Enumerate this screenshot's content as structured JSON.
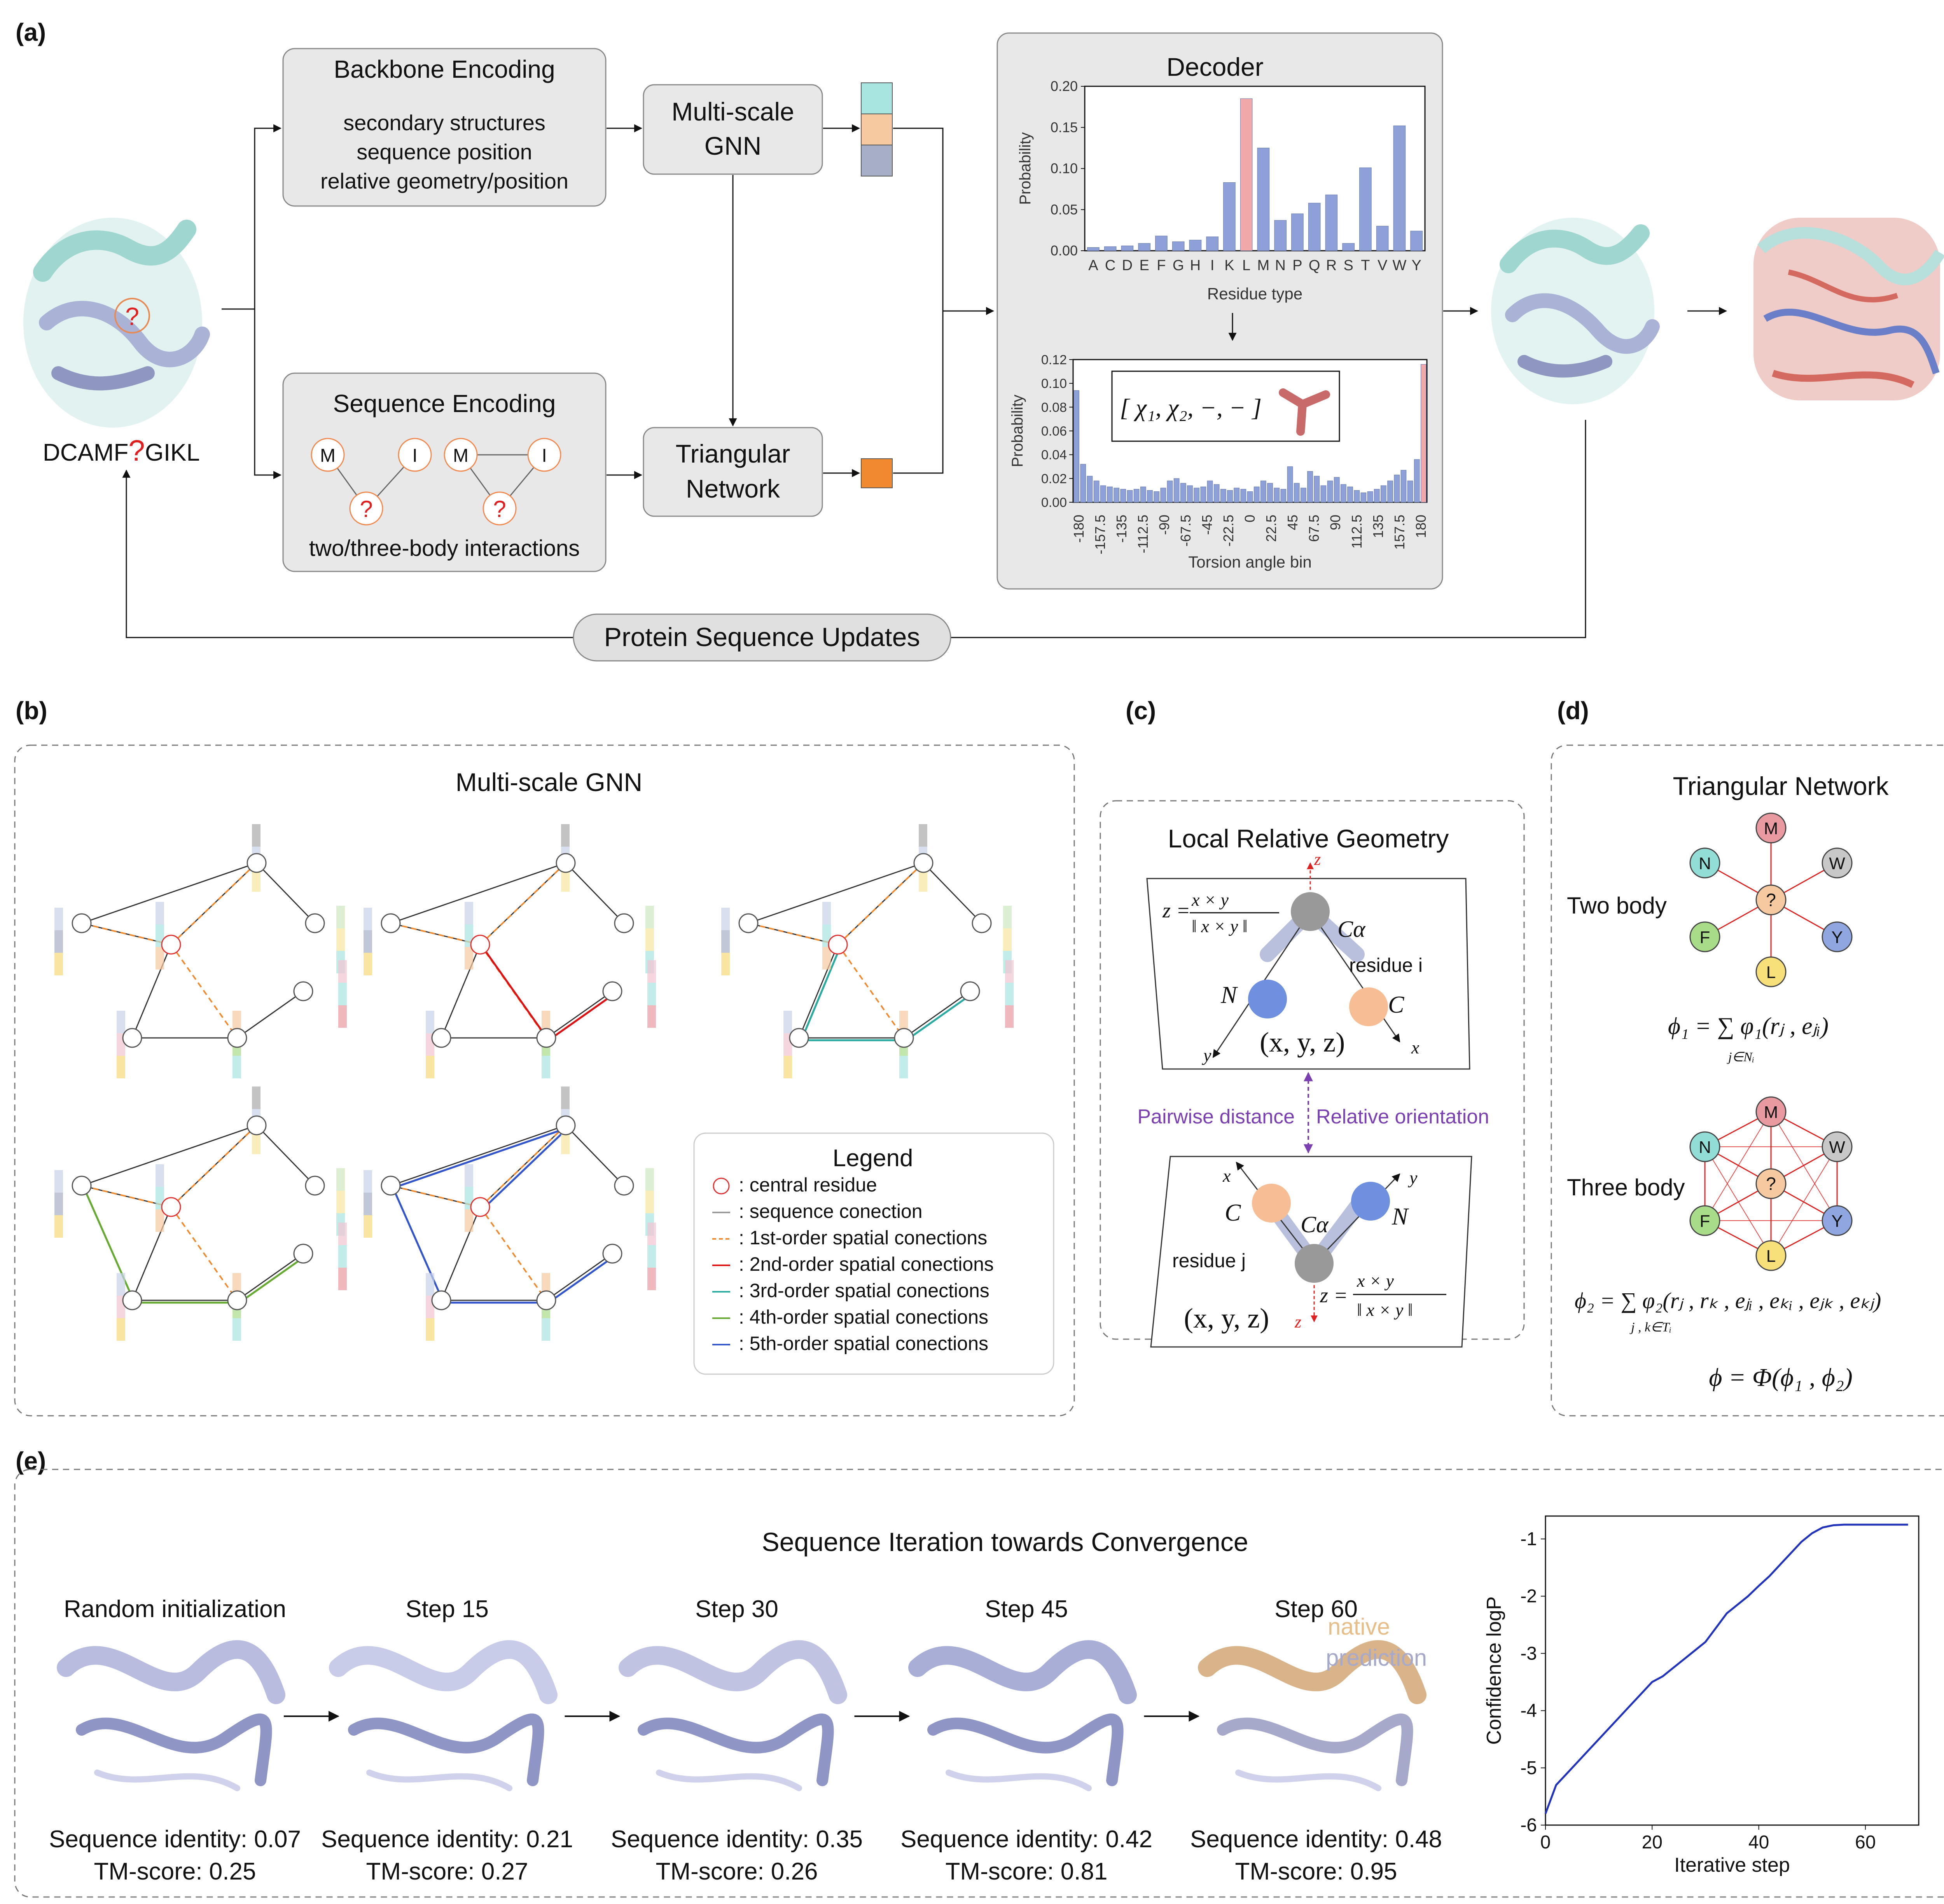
{
  "panels": {
    "a": "(a)",
    "b": "(b)",
    "c": "(c)",
    "d": "(d)",
    "e": "(e)"
  },
  "a": {
    "backbone_title": "Backbone Encoding",
    "backbone_lines": [
      "secondary structures",
      "sequence position",
      "relative geometry/position"
    ],
    "sequence_title": "Sequence Encoding",
    "sequence_caption": "two/three-body interactions",
    "node_m": "M",
    "node_i": "I",
    "node_q": "?",
    "gnn_line1": "Multi-scale",
    "gnn_line2": "GNN",
    "tri_line1": "Triangular",
    "tri_line2": "Network",
    "seq_prefix": "DCAMF",
    "seq_q": "?",
    "seq_suffix": "GIKL",
    "protein_q": "?",
    "update_label": "Protein Sequence Updates",
    "decoder_title": "Decoder",
    "chi_formula": "[ χ₁, χ₂, −, − ]"
  },
  "chart_data": [
    {
      "type": "bar",
      "ylabel": "Probability",
      "xlabel": "Residue type",
      "ylim": [
        0,
        0.2
      ],
      "yticks": [
        "0.00",
        "0.05",
        "0.10",
        "0.15",
        "0.20"
      ],
      "categories": [
        "A",
        "C",
        "D",
        "E",
        "F",
        "G",
        "H",
        "I",
        "K",
        "L",
        "M",
        "N",
        "P",
        "Q",
        "R",
        "S",
        "T",
        "V",
        "W",
        "Y"
      ],
      "values": [
        0.004,
        0.005,
        0.006,
        0.009,
        0.018,
        0.011,
        0.013,
        0.017,
        0.083,
        0.185,
        0.125,
        0.037,
        0.045,
        0.058,
        0.068,
        0.009,
        0.101,
        0.03,
        0.152,
        0.024
      ],
      "highlight_index": 9,
      "bar_color": "#8da0d8",
      "highlight_color": "#f0a8a8"
    },
    {
      "type": "bar",
      "ylabel": "Probability",
      "xlabel": "Torsion angle bin",
      "ylim": [
        0,
        0.12
      ],
      "yticks": [
        "0.00",
        "0.02",
        "0.04",
        "0.06",
        "0.08",
        "0.10",
        "0.12"
      ],
      "xticks": [
        "-180",
        "-157.5",
        "-135",
        "-112.5",
        "-90",
        "-67.5",
        "-45",
        "-22.5",
        "0",
        "22.5",
        "45",
        "67.5",
        "90",
        "112.5",
        "135",
        "157.5",
        "180"
      ],
      "values": [
        0.094,
        0.032,
        0.022,
        0.018,
        0.014,
        0.013,
        0.012,
        0.011,
        0.01,
        0.011,
        0.013,
        0.01,
        0.009,
        0.012,
        0.018,
        0.02,
        0.016,
        0.014,
        0.012,
        0.013,
        0.018,
        0.015,
        0.011,
        0.01,
        0.012,
        0.011,
        0.009,
        0.013,
        0.018,
        0.016,
        0.012,
        0.011,
        0.03,
        0.016,
        0.012,
        0.026,
        0.022,
        0.014,
        0.018,
        0.021,
        0.015,
        0.013,
        0.01,
        0.008,
        0.009,
        0.011,
        0.014,
        0.018,
        0.023,
        0.027,
        0.018,
        0.036,
        0.116
      ],
      "highlight_index": 52,
      "bar_color": "#8da0d8",
      "highlight_color": "#f0a8a8"
    },
    {
      "type": "line",
      "xlabel": "Iterative step",
      "ylabel": "Confidence logP",
      "xlim": [
        0,
        70
      ],
      "ylim": [
        -6,
        -0.6
      ],
      "xticks": [
        "0",
        "20",
        "40",
        "60"
      ],
      "yticks": [
        "-6",
        "-5",
        "-4",
        "-3",
        "-2",
        "-1"
      ],
      "series": [
        {
          "x": [
            0,
            2,
            4,
            6,
            8,
            10,
            12,
            14,
            16,
            18,
            20,
            22,
            24,
            26,
            28,
            30,
            32,
            34,
            36,
            38,
            40,
            42,
            44,
            46,
            48,
            50,
            52,
            54,
            56,
            58,
            60,
            62,
            64,
            66,
            68
          ],
          "y": [
            -5.8,
            -5.3,
            -5.1,
            -4.9,
            -4.7,
            -4.5,
            -4.3,
            -4.1,
            -3.9,
            -3.7,
            -3.5,
            -3.4,
            -3.25,
            -3.1,
            -2.95,
            -2.8,
            -2.55,
            -2.3,
            -2.15,
            -2.0,
            -1.82,
            -1.65,
            -1.45,
            -1.25,
            -1.05,
            -0.9,
            -0.8,
            -0.76,
            -0.75,
            -0.75,
            -0.75,
            -0.75,
            -0.75,
            -0.75,
            -0.75
          ],
          "color": "#2233bb"
        }
      ]
    }
  ],
  "b": {
    "title": "Multi-scale GNN",
    "legend_title": "Legend",
    "legend_items": [
      {
        "label": ": central residue",
        "color": "#e03030"
      },
      {
        "label": ": sequence conection",
        "color": "#999999"
      },
      {
        "label": ": 1st-order spatial conections",
        "color": "#f08a30"
      },
      {
        "label": ": 2nd-order spatial conections",
        "color": "#dd1111"
      },
      {
        "label": ": 3rd-order spatial conections",
        "color": "#2aaaa0"
      },
      {
        "label": ": 4th-order spatial conections",
        "color": "#66aa33"
      },
      {
        "label": ": 5th-order spatial conections",
        "color": "#3355cc"
      }
    ]
  },
  "c": {
    "title": "Local Relative Geometry",
    "pairwise": "Pairwise distance",
    "orientation": "Relative orientation",
    "residue_i": "residue i",
    "residue_j": "residue j",
    "xyz": "(x, y, z)",
    "z_formula_num": "x × y",
    "z_formula_den": "‖ x × y ‖",
    "ca": "Cα",
    "n": "N",
    "c": "C",
    "axis_x": "x",
    "axis_y": "y",
    "axis_z": "z"
  },
  "d": {
    "title": "Triangular Network",
    "two_body": "Two body",
    "three_body": "Three body",
    "center": "?",
    "nodes": [
      "M",
      "W",
      "Y",
      "L",
      "F",
      "N"
    ],
    "node_colors": [
      "#e89aa0",
      "#c8c8c8",
      "#8fa6e0",
      "#f7e07a",
      "#a8dc88",
      "#92ddd6"
    ],
    "phi1": "ϕ₁ = ∑ φ₁(rⱼ , eⱼᵢ)",
    "phi1_sub": "j∈Nᵢ",
    "phi2": "ϕ₂ = ∑ φ₂(rⱼ , rₖ , eⱼᵢ , eₖᵢ , eⱼₖ , eₖⱼ)",
    "phi2_sub": "j , k∈Tᵢ",
    "phi": "ϕ = Φ(ϕ₁ , ϕ₂)"
  },
  "e": {
    "title": "Sequence Iteration towards Convergence",
    "native": "native",
    "prediction": "prediction",
    "steps": [
      {
        "label": "Random initialization",
        "identity": "Sequence identity: 0.07",
        "tm": "TM-score:  0.25"
      },
      {
        "label": "Step 15",
        "identity": "Sequence identity: 0.21",
        "tm": "TM-score:  0.27"
      },
      {
        "label": "Step 30",
        "identity": "Sequence identity: 0.35",
        "tm": "TM-score:  0.26"
      },
      {
        "label": "Step 45",
        "identity": "Sequence identity: 0.42",
        "tm": "TM-score:  0.81"
      },
      {
        "label": "Step 60",
        "identity": "Sequence identity: 0.48",
        "tm": "TM-score:  0.95"
      }
    ]
  }
}
